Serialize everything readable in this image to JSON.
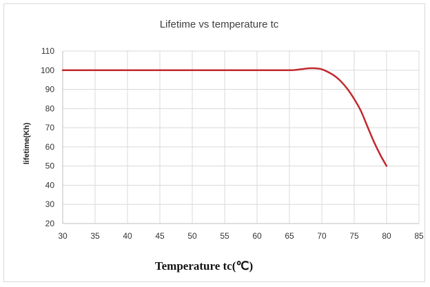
{
  "chart_data": {
    "type": "line",
    "title": "Lifetime vs temperature tc",
    "xlabel": "Temperature tc(℃)",
    "ylabel": "lifetime(Kh)",
    "xlim": [
      30,
      85
    ],
    "ylim": [
      20,
      110
    ],
    "x_ticks": [
      30,
      35,
      40,
      45,
      50,
      55,
      60,
      65,
      70,
      75,
      80,
      85
    ],
    "y_ticks": [
      20,
      30,
      40,
      50,
      60,
      70,
      80,
      90,
      100,
      110
    ],
    "grid": true,
    "legend": "none",
    "series": [
      {
        "color": "#c0282d",
        "x": [
          30,
          35,
          40,
          45,
          50,
          55,
          60,
          65,
          66,
          67,
          68,
          69,
          70,
          71,
          72,
          73,
          74,
          75,
          76,
          77,
          78,
          79,
          80
        ],
        "y": [
          100,
          100,
          100,
          100,
          100,
          100,
          100,
          100,
          100.2,
          100.6,
          101,
          101,
          100.5,
          99,
          97,
          94,
          90,
          85,
          79,
          71,
          63,
          56,
          50
        ]
      }
    ]
  }
}
